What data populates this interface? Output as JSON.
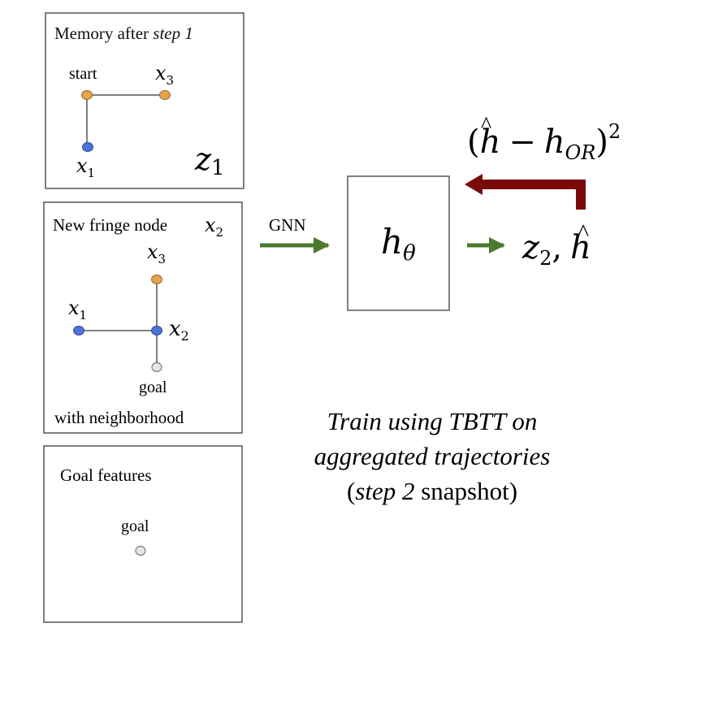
{
  "memory_panel": {
    "title": "Memory after",
    "title_step": "step 1",
    "node_start": "start",
    "node_x3_var": "x",
    "node_x3_sub": "3",
    "node_x1_var": "x",
    "node_x1_sub": "1",
    "latent_var": "z",
    "latent_sub": "1"
  },
  "fringe_panel": {
    "title": "New fringe node",
    "title_var": "x",
    "title_sub": "2",
    "node_x3_var": "x",
    "node_x3_sub": "3",
    "node_x1_var": "x",
    "node_x1_sub": "1",
    "node_x2_var": "x",
    "node_x2_sub": "2",
    "node_goal": "goal",
    "caption": "with neighborhood"
  },
  "goal_panel": {
    "title": "Goal features",
    "node_goal": "goal"
  },
  "gnn_label": "GNN",
  "model": {
    "var": "h",
    "sub": "θ"
  },
  "output": {
    "z_var": "z",
    "z_sub": "2",
    "comma": ",",
    "h_var": "h",
    "hat": "^"
  },
  "loss": {
    "open": "(",
    "h_var": "h",
    "hat": "^",
    "minus": "−",
    "h2_var": "h",
    "h2_sub": "OR",
    "close": ")",
    "power": "2"
  },
  "caption": {
    "line1": "Train using TBTT on",
    "line2": "aggregated trajectories",
    "line3_open": "(",
    "line3_step": "step 2",
    "line3_rest": " snapshot)"
  },
  "colors": {
    "orange_node": "#E8A24A",
    "blue_node": "#4F74D8",
    "gray_node": "#E6E6E6",
    "edge": "#555555",
    "green_arrow": "#4B7A2E",
    "loss_arrow": "#7A0A0A",
    "panel_border": "#555555"
  }
}
